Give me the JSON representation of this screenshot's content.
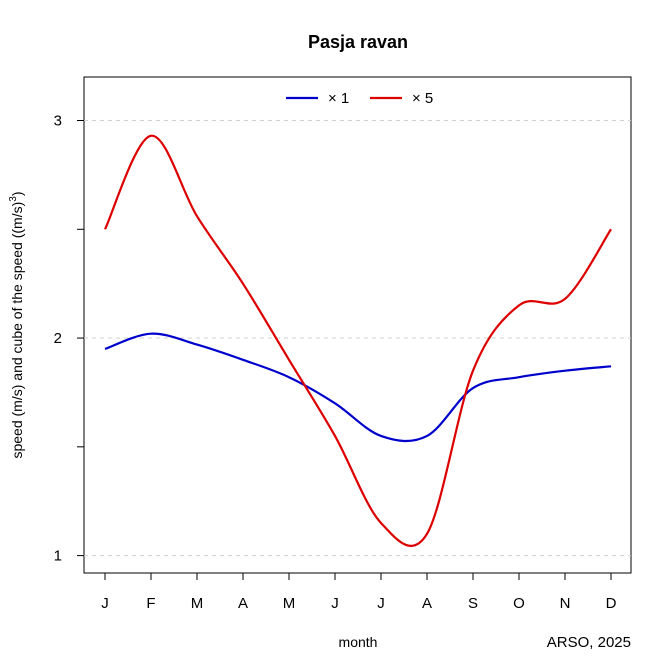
{
  "chart_data": {
    "type": "line",
    "title": "Pasja ravan",
    "xlabel": "month",
    "ylabel": "speed (m/s) and cube of the speed ((m/s)",
    "ylabel_superscript": "3",
    "ylabel_suffix": ")",
    "credit": "ARSO, 2025",
    "categories": [
      "J",
      "F",
      "M",
      "A",
      "M",
      "J",
      "J",
      "A",
      "S",
      "O",
      "N",
      "D"
    ],
    "ylim": [
      0.92,
      3.2
    ],
    "yticks": [
      1,
      2,
      3
    ],
    "ytick_labels": [
      "1",
      "2",
      "3"
    ],
    "grid": "horizontal dashed",
    "legend_position": "top-center",
    "series": [
      {
        "name": "× 1",
        "color": "#0000cd",
        "values": [
          1.95,
          2.02,
          1.97,
          1.9,
          1.82,
          1.7,
          1.55,
          1.55,
          1.77,
          1.82,
          1.85,
          1.87
        ]
      },
      {
        "name": "×  5",
        "color": "#dd0000",
        "values": [
          2.5,
          2.93,
          2.56,
          2.25,
          1.9,
          1.55,
          1.15,
          1.1,
          1.85,
          2.15,
          2.18,
          2.5
        ]
      }
    ]
  }
}
